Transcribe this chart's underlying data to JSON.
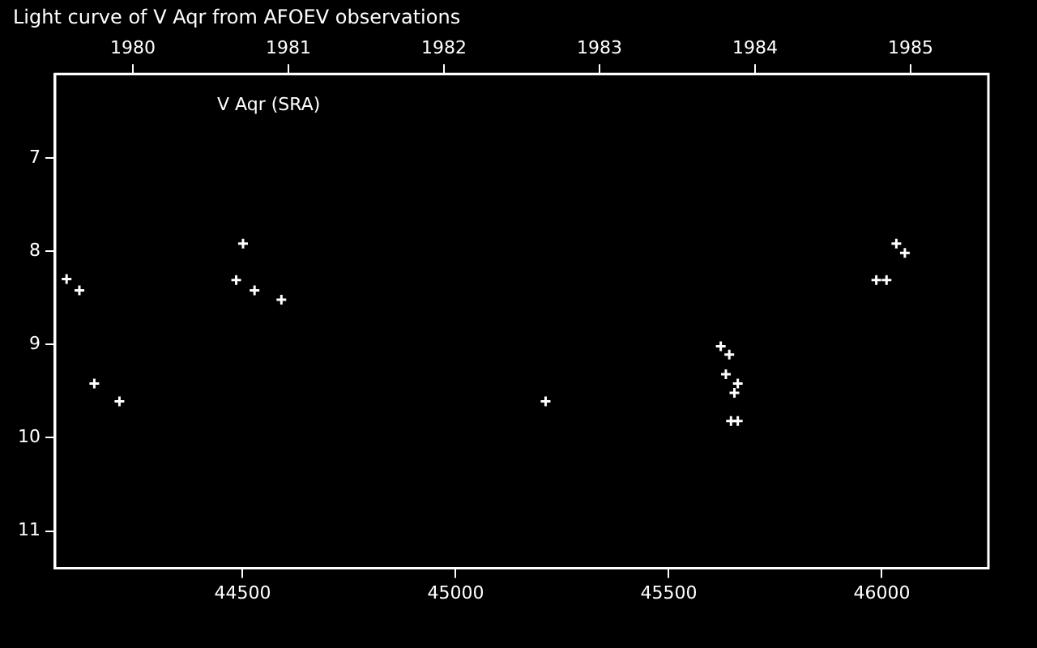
{
  "chart_data": {
    "type": "scatter",
    "title": "Light curve of V Aqr from AFOEV observations",
    "annotations": [
      "V Aqr (SRA)"
    ],
    "x": [
      44087,
      44117,
      44152,
      44211,
      44485,
      44501,
      44528,
      44591,
      45211,
      45622,
      45642,
      45634,
      45662,
      45654,
      45646,
      45662,
      45987,
      46011,
      46034,
      46054
    ],
    "series": [
      {
        "color": "#ffffff",
        "values": [
          8.3,
          8.42,
          9.42,
          9.61,
          8.31,
          7.92,
          8.42,
          8.52,
          9.61,
          9.02,
          9.11,
          9.32,
          9.42,
          9.52,
          9.82,
          9.82,
          8.31,
          8.31,
          7.92,
          8.02
        ]
      }
    ],
    "marker": "cross",
    "xlim": [
      44060,
      46250
    ],
    "xticks": [
      44500,
      45000,
      45500,
      46000
    ],
    "ylim": [
      11.4,
      6.1
    ],
    "yticks": [
      7,
      8,
      9,
      10,
      11
    ],
    "x2lim": [
      1979.5,
      1985.5
    ],
    "x2ticks": [
      1980,
      1981,
      1982,
      1983,
      1984,
      1985
    ],
    "grid": false,
    "legend": false
  }
}
